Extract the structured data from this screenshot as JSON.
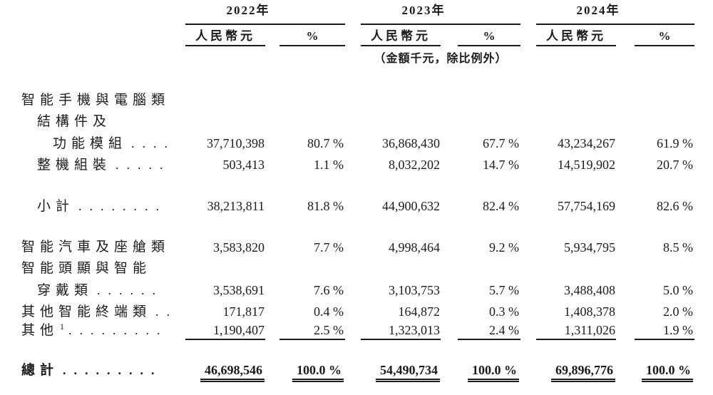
{
  "document": {
    "kind": "revenue-breakdown-table",
    "unit_note": "（金額千元，除比例外）",
    "text_color": "#1b1b1b",
    "background_color": "#ffffff"
  },
  "header": {
    "col_groups": [
      {
        "year": "2022年",
        "sub": [
          "人民幣元",
          "%"
        ]
      },
      {
        "year": "2023年",
        "sub": [
          "人民幣元",
          "%"
        ]
      },
      {
        "year": "2024年",
        "sub": [
          "人民幣元",
          "%"
        ]
      }
    ]
  },
  "rows": [
    {
      "type": "label",
      "indent": 0,
      "label": "智能手機與電腦類"
    },
    {
      "type": "label",
      "indent": 1,
      "label": "結構件及"
    },
    {
      "type": "data",
      "indent": 2,
      "label": "功能模組",
      "dots": "....",
      "values": [
        "37,710,398",
        "80.7 %",
        "36,868,430",
        "67.7 %",
        "43,234,267",
        "61.9 %"
      ]
    },
    {
      "type": "data",
      "indent": 1,
      "label": "整機組裝",
      "dots": ".....",
      "values": [
        "503,413",
        "1.1 %",
        "8,032,202",
        "14.7 %",
        "14,519,902",
        "20.7 %"
      ]
    },
    {
      "type": "gap"
    },
    {
      "type": "data",
      "indent": 1,
      "label": "小計",
      "dots": "........",
      "values": [
        "38,213,811",
        "81.8 %",
        "44,900,632",
        "82.4 %",
        "57,754,169",
        "82.6 %"
      ]
    },
    {
      "type": "gap"
    },
    {
      "type": "data",
      "indent": 0,
      "label": "智能汽車及座艙類",
      "values": [
        "3,583,820",
        "7.7 %",
        "4,998,464",
        "9.2 %",
        "5,934,795",
        "8.5 %"
      ]
    },
    {
      "type": "label",
      "indent": 0,
      "label": "智能頭顯與智能"
    },
    {
      "type": "data",
      "indent": 1,
      "label": "穿戴類",
      "dots": "......",
      "values": [
        "3,538,691",
        "7.6 %",
        "3,103,753",
        "5.7 %",
        "3,488,408",
        "5.0 %"
      ]
    },
    {
      "type": "data",
      "indent": 0,
      "label": "其他智能終端類",
      "dots": "..",
      "values": [
        "171,817",
        "0.4 %",
        "164,872",
        "0.3 %",
        "1,408,378",
        "2.0 %"
      ]
    },
    {
      "type": "data",
      "indent": 0,
      "label": "其他",
      "sup": "1",
      "dots": ".........",
      "underline": true,
      "values": [
        "1,190,407",
        "2.5 %",
        "1,323,013",
        "2.4 %",
        "1,311,026",
        "1.9 %"
      ]
    },
    {
      "type": "gap"
    },
    {
      "type": "total",
      "indent": 0,
      "label": "總計",
      "dots": ".........",
      "values": [
        "46,698,546",
        "100.0 %",
        "54,490,734",
        "100.0 %",
        "69,896,776",
        "100.0 %"
      ]
    }
  ]
}
